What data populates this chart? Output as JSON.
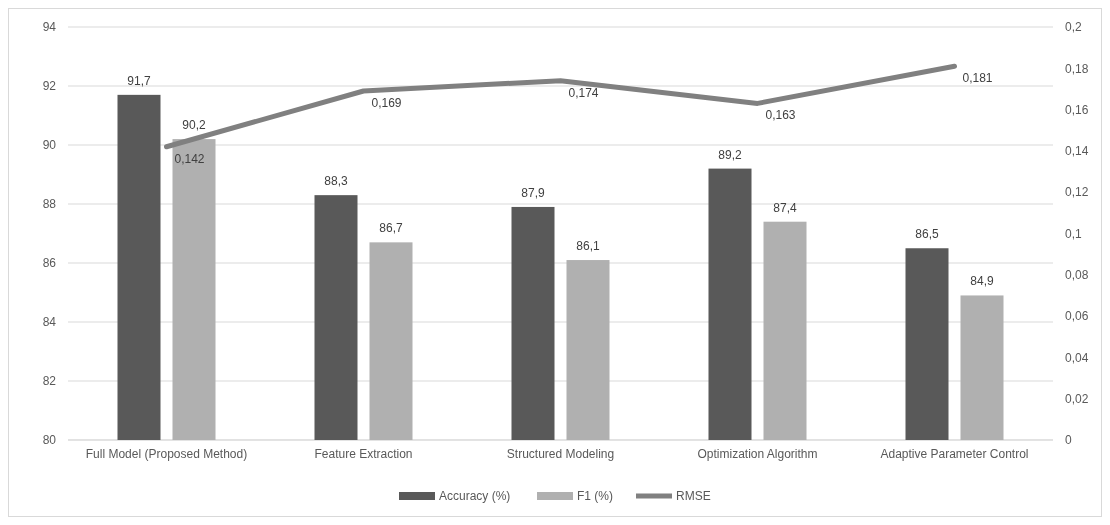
{
  "chart_data": {
    "type": "bar",
    "categories": [
      "Full Model (Proposed Method)",
      "Feature Extraction",
      "Structured Modeling",
      "Optimization Algorithm",
      "Adaptive Parameter Control"
    ],
    "series": [
      {
        "name": "Accuracy (%)",
        "color": "#595959",
        "values": [
          91.7,
          88.3,
          87.9,
          89.2,
          86.5
        ],
        "value_labels": [
          "91,7",
          "88,3",
          "87,9",
          "89,2",
          "86,5"
        ]
      },
      {
        "name": "F1 (%)",
        "color": "#b0b0b0",
        "values": [
          90.2,
          86.7,
          86.1,
          87.4,
          84.9
        ],
        "value_labels": [
          "90,2",
          "86,7",
          "86,1",
          "87,4",
          "84,9"
        ]
      },
      {
        "name": "RMSE",
        "type": "line",
        "axis": "y2",
        "color": "#808080",
        "values": [
          0.142,
          0.169,
          0.174,
          0.163,
          0.181
        ],
        "value_labels": [
          "0,142",
          "0,169",
          "0,174",
          "0,163",
          "0,181"
        ]
      }
    ],
    "ylim": [
      80,
      94
    ],
    "yticks": [
      80,
      82,
      84,
      86,
      88,
      90,
      92,
      94
    ],
    "y2lim": [
      0,
      0.2
    ],
    "y2ticks": [
      0,
      {
        "value": 0.02,
        "label": "0,02"
      },
      {
        "value": 0.04,
        "label": "0,04"
      },
      {
        "value": 0.06,
        "label": "0,06"
      },
      {
        "value": 0.08,
        "label": "0,08"
      },
      {
        "value": 0.1,
        "label": "0,1"
      },
      {
        "value": 0.12,
        "label": "0,12"
      },
      {
        "value": 0.14,
        "label": "0,14"
      },
      {
        "value": 0.16,
        "label": "0,16"
      },
      {
        "value": 0.18,
        "label": "0,18"
      },
      {
        "value": 0.2,
        "label": "0,2"
      }
    ],
    "grid": "y",
    "legend": "bottom"
  }
}
